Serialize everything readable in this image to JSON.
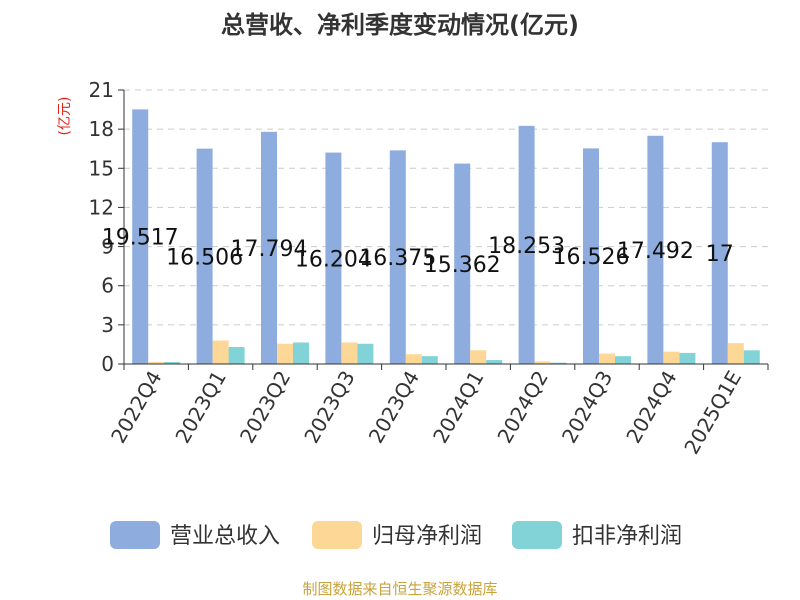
{
  "chart_data": {
    "type": "bar",
    "title": "总营收、净利季度变动情况(亿元)",
    "unit_label": "(亿元)",
    "categories": [
      "2022Q4",
      "2023Q1",
      "2023Q2",
      "2023Q3",
      "2023Q4",
      "2024Q1",
      "2024Q2",
      "2024Q3",
      "2024Q4",
      "2025Q1E"
    ],
    "series": [
      {
        "name": "营业总收入",
        "color": "#8eadde",
        "values": [
          19.517,
          16.506,
          17.794,
          16.204,
          16.375,
          15.362,
          18.253,
          16.526,
          17.492,
          17.0
        ]
      },
      {
        "name": "归母净利润",
        "color": "#fdd796",
        "values": [
          0.15,
          1.8,
          1.55,
          1.65,
          0.75,
          1.05,
          0.2,
          0.8,
          0.95,
          1.6
        ]
      },
      {
        "name": "扣非净利润",
        "color": "#82d3d8",
        "values": [
          0.15,
          1.3,
          1.65,
          1.55,
          0.6,
          0.3,
          0.1,
          0.6,
          0.85,
          1.05
        ]
      }
    ],
    "data_labels": [
      "19.517",
      "16.506",
      "17.794",
      "16.204",
      "16.375",
      "15.362",
      "18.253",
      "16.526",
      "17.492",
      "17"
    ],
    "yticks": [
      "0",
      "3",
      "6",
      "9",
      "12",
      "15",
      "18",
      "21"
    ],
    "ylim": [
      0,
      21
    ],
    "grid": true,
    "legend_position": "bottom",
    "source": "制图数据来自恒生聚源数据库",
    "colors": {
      "unit": "#e0261b",
      "source": "#c9a33d",
      "axis": "#333333",
      "grid": "#cccccc"
    }
  }
}
